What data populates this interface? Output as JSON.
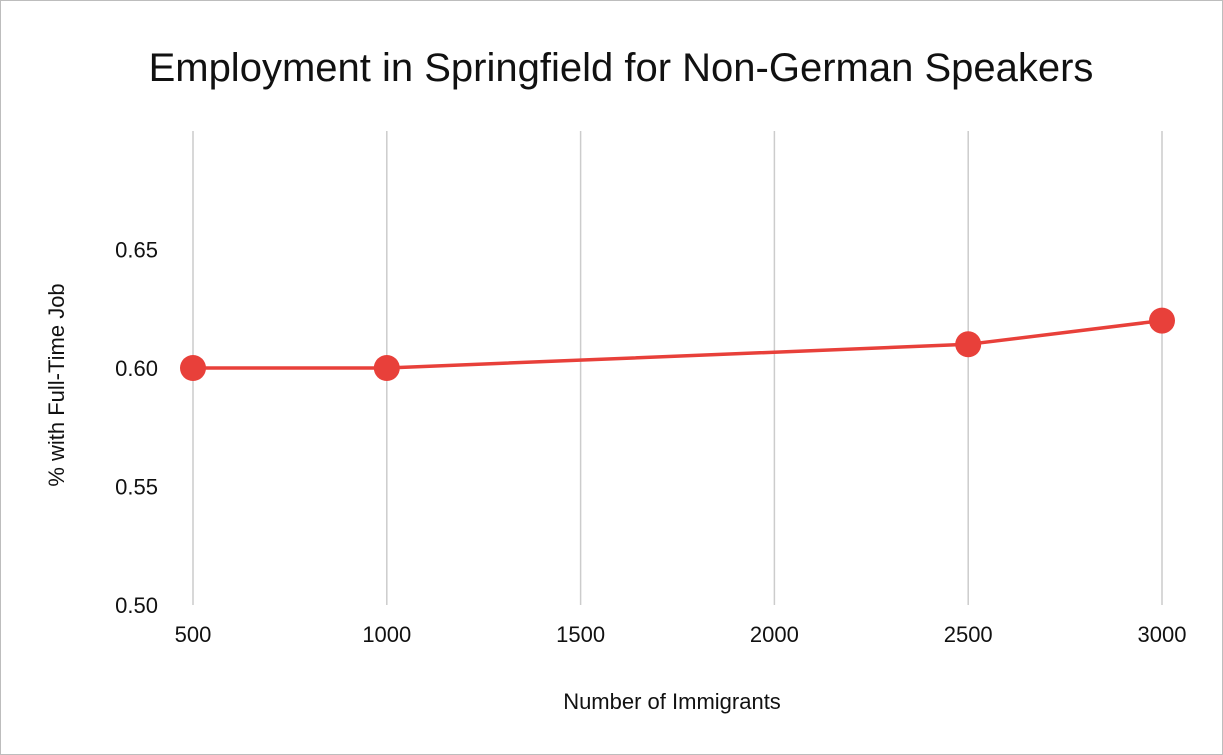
{
  "chart_data": {
    "type": "line",
    "title": "Employment in Springfield for Non-German Speakers",
    "xlabel": "Number of Immigrants",
    "ylabel": "% with Full-Time Job",
    "x_ticks": [
      "500",
      "1000",
      "1500",
      "2000",
      "2500",
      "3000"
    ],
    "y_ticks": [
      "0.50",
      "0.55",
      "0.60",
      "0.65"
    ],
    "xlim": [
      500,
      3000
    ],
    "ylim": [
      0.5,
      0.7
    ],
    "grid": {
      "vertical": true,
      "horizontal": false
    },
    "legend": "none",
    "series": [
      {
        "name": "% with Full-Time Job",
        "color": "#e8403a",
        "points": [
          {
            "x": 500,
            "y": 0.6
          },
          {
            "x": 1000,
            "y": 0.6
          },
          {
            "x": 2500,
            "y": 0.61
          },
          {
            "x": 3000,
            "y": 0.62
          }
        ]
      }
    ]
  }
}
